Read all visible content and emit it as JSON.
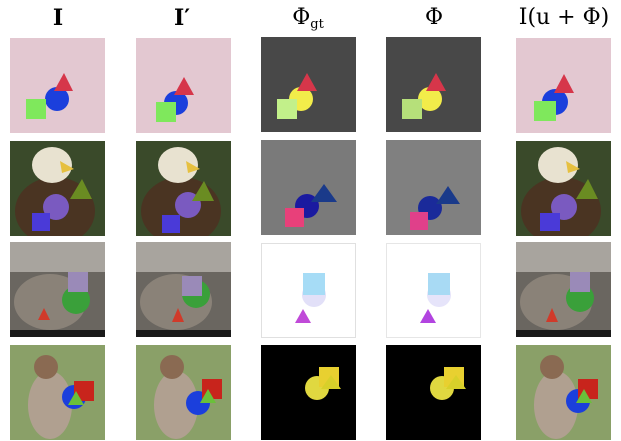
{
  "headers": {
    "c1": "I",
    "c2": "I′",
    "c3_base": "Φ",
    "c3_sub": "gt",
    "c4": "Φ",
    "c5": "I(u + Φ)"
  },
  "colors": {
    "row1_bg": "#e3c8d1",
    "row2_flow_bg": "#7a7a7a",
    "row3_flow_bg": "#ffffff",
    "row4_flow_bg": "#000000",
    "row1_flow_bg": "#484848",
    "triangle_red": "#d6364a",
    "circle_blue": "#1b3fdc",
    "square_green": "#7fe85c"
  }
}
